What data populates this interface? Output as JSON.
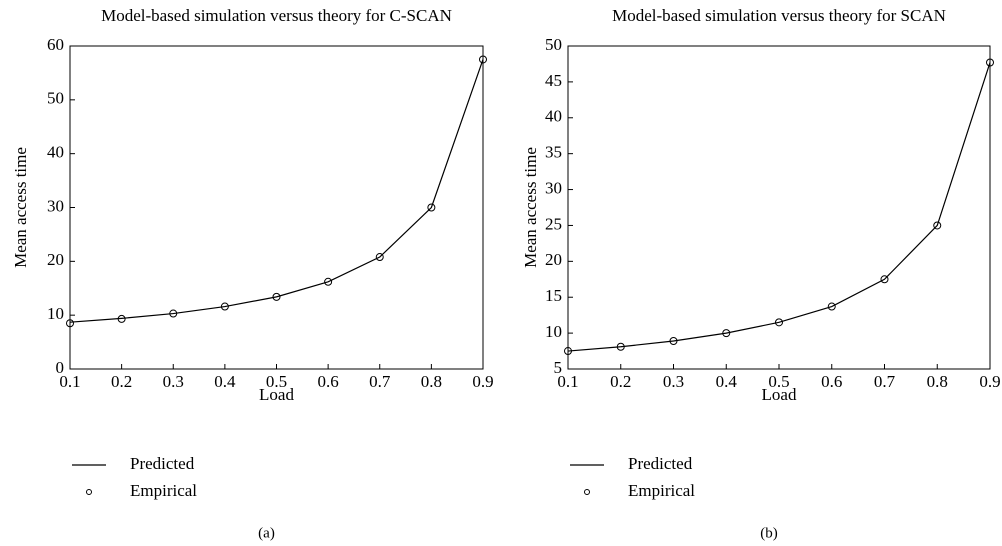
{
  "chart_data": [
    {
      "type": "line",
      "title": "Model-based simulation versus theory for C-SCAN",
      "x_label": "Load",
      "y_label": "Mean access time",
      "caption": "(a)",
      "x": [
        0.1,
        0.2,
        0.3,
        0.4,
        0.5,
        0.6,
        0.7,
        0.8,
        0.9
      ],
      "series": [
        {
          "name": "Predicted",
          "color": "#000000",
          "style": "line",
          "values": [
            8.7,
            9.4,
            10.3,
            11.6,
            13.4,
            16.2,
            20.8,
            30,
            57.5
          ]
        },
        {
          "name": "Empirical",
          "color": "#000000",
          "style": "markers",
          "values": [
            8.5,
            9.3,
            10.3,
            11.6,
            13.4,
            16.2,
            20.8,
            30,
            57.5
          ]
        }
      ],
      "xlim": [
        0.1,
        0.9
      ],
      "xticks": [
        0.1,
        0.2,
        0.3,
        0.4,
        0.5,
        0.6,
        0.7,
        0.8,
        0.9
      ],
      "ylim": [
        0,
        60
      ],
      "yticks": [
        0,
        10,
        20,
        30,
        40,
        50,
        60
      ]
    },
    {
      "type": "line",
      "title": "Model-based simulation versus theory for SCAN",
      "x_label": "Load",
      "y_label": "Mean access time",
      "caption": "(b)",
      "x": [
        0.1,
        0.2,
        0.3,
        0.4,
        0.5,
        0.6,
        0.7,
        0.8,
        0.9
      ],
      "series": [
        {
          "name": "Predicted",
          "color": "#000000",
          "style": "line",
          "values": [
            7.5,
            8.1,
            8.9,
            10,
            11.5,
            13.7,
            17.5,
            25,
            47.7
          ]
        },
        {
          "name": "Empirical",
          "color": "#000000",
          "style": "markers",
          "values": [
            7.5,
            8.1,
            8.9,
            10,
            11.5,
            13.7,
            17.5,
            25,
            47.7
          ]
        }
      ],
      "xlim": [
        0.1,
        0.9
      ],
      "xticks": [
        0.1,
        0.2,
        0.3,
        0.4,
        0.5,
        0.6,
        0.7,
        0.8,
        0.9
      ],
      "ylim": [
        5,
        50
      ],
      "yticks": [
        5,
        10,
        15,
        20,
        25,
        30,
        35,
        40,
        45,
        50
      ]
    }
  ]
}
